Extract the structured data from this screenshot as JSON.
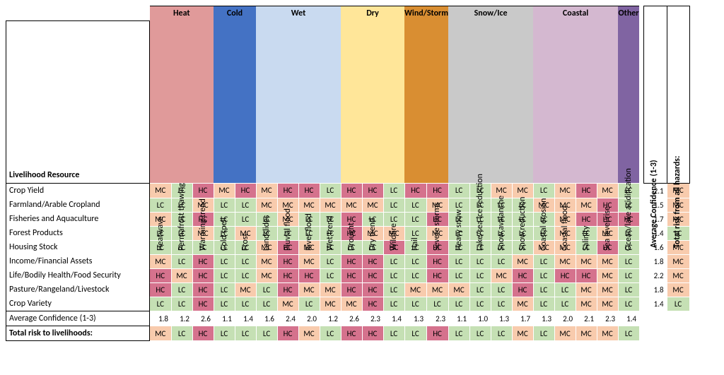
{
  "title_rowheader": "Livelihood Resource",
  "avg_row_label": "Average Confidence (1-3)",
  "total_row_label": "Total risk to livelihoods:",
  "summary_cols": [
    "Average Confidence (1-3)",
    "Total risk from all hazards:"
  ],
  "colors": {
    "LC": "#c5e0b4",
    "MC": "#f8cbad",
    "HC": "#d5728d",
    "group": {
      "Heat": "#e09a9a",
      "Cold": "#4472c4",
      "Wet": "#c9daf0",
      "Dry": "#ffe699",
      "Wind/Storm": "#d98e32",
      "Snow/Ice": "#c9c9c9",
      "Coastal": "#d4b8d0",
      "Other": "#8064a2"
    },
    "text_on_dark": "#000000"
  },
  "groups": [
    {
      "name": "Heat",
      "hazards": [
        "Heatwave",
        "Permafrost thawing",
        "Warming trend"
      ]
    },
    {
      "name": "Cold",
      "hazards": [
        "Cold spell",
        "Frost"
      ]
    },
    {
      "name": "Wet",
      "hazards": [
        "Landslides",
        "Pluvial flood",
        "River flood",
        "Wet trend"
      ]
    },
    {
      "name": "Dry",
      "hazards": [
        "Drought",
        "Dry trend",
        "Wildfire"
      ]
    },
    {
      "name": "Wind/Storm",
      "hazards": [
        "Hail",
        "Severe storms"
      ]
    },
    {
      "name": "Snow/Ice",
      "hazards": [
        "Heavy snow",
        "Lake/sea ice reduction",
        "Snow avalanche",
        "Snow reduction"
      ]
    },
    {
      "name": "Coastal",
      "hazards": [
        "Coastal erosion",
        "Coastal flood",
        "Salinity",
        "Sea level rise"
      ]
    },
    {
      "name": "Other",
      "hazards": [
        "Ocean/lake acidification"
      ]
    }
  ],
  "rows": [
    {
      "label": "Crop Yield",
      "cells": [
        "MC",
        "LC",
        "HC",
        "MC",
        "HC",
        "MC",
        "HC",
        "HC",
        "LC",
        "HC",
        "HC",
        "LC",
        "HC",
        "HC",
        "LC",
        "LC",
        "MC",
        "MC",
        "LC",
        "MC",
        "HC",
        "MC",
        "LC"
      ],
      "avg": 2.1,
      "total": "MC"
    },
    {
      "label": "Farmland/Arable Cropland",
      "cells": [
        "LC",
        "LC",
        "MC",
        "LC",
        "LC",
        "MC",
        "MC",
        "MC",
        "MC",
        "MC",
        "MC",
        "LC",
        "LC",
        "MC",
        "LC",
        "LC",
        "LC",
        "LC",
        "MC",
        "MC",
        "MC",
        "HC",
        "LC"
      ],
      "avg": 1.5,
      "total": "MC"
    },
    {
      "label": "Fisheries and Aquaculture",
      "cells": [
        "MC",
        "LC",
        "HC",
        "LC",
        "LC",
        "LC",
        "MC",
        "LC",
        "LC",
        "HC",
        "LC",
        "LC",
        "LC",
        "HC",
        "LC",
        "LC",
        "LC",
        "LC",
        "LC",
        "MC",
        "HC",
        "HC",
        "HC"
      ],
      "avg": 1.7,
      "total": "MC"
    },
    {
      "label": "Forest Products",
      "cells": [
        "LC",
        "LC",
        "MC",
        "LC",
        "MC",
        "LC",
        "LC",
        "LC",
        "LC",
        "HC",
        "MC",
        "MC",
        "LC",
        "MC",
        "LC",
        "LC",
        "LC",
        "LC",
        "LC",
        "MC",
        "LC",
        "MC",
        "LC"
      ],
      "avg": 1.4,
      "total": "LC"
    },
    {
      "label": "Housing Stock",
      "cells": [
        "LC",
        "LC",
        "LC",
        "LC",
        "LC",
        "MC",
        "HC",
        "MC",
        "LC",
        "LC",
        "LC",
        "HC",
        "LC",
        "HC",
        "LC",
        "LC",
        "LC",
        "LC",
        "MC",
        "MC",
        "LC",
        "HC",
        "LC"
      ],
      "avg": 1.6,
      "total": "MC"
    },
    {
      "label": "Income/Financial Assets",
      "cells": [
        "MC",
        "LC",
        "HC",
        "LC",
        "LC",
        "MC",
        "HC",
        "MC",
        "LC",
        "HC",
        "HC",
        "LC",
        "LC",
        "HC",
        "LC",
        "LC",
        "LC",
        "MC",
        "LC",
        "MC",
        "MC",
        "MC",
        "LC"
      ],
      "avg": 1.8,
      "total": "MC"
    },
    {
      "label": "Life/Bodily Health/Food Security",
      "cells": [
        "HC",
        "MC",
        "HC",
        "LC",
        "LC",
        "MC",
        "HC",
        "HC",
        "LC",
        "HC",
        "HC",
        "LC",
        "LC",
        "HC",
        "LC",
        "LC",
        "MC",
        "HC",
        "LC",
        "HC",
        "HC",
        "MC",
        "LC"
      ],
      "avg": 2.2,
      "total": "MC"
    },
    {
      "label": "Pasture/Rangeland/Livestock",
      "cells": [
        "HC",
        "LC",
        "HC",
        "LC",
        "MC",
        "LC",
        "HC",
        "MC",
        "MC",
        "HC",
        "HC",
        "LC",
        "MC",
        "MC",
        "MC",
        "LC",
        "LC",
        "HC",
        "LC",
        "LC",
        "MC",
        "MC",
        "LC"
      ],
      "avg": 1.8,
      "total": "MC"
    },
    {
      "label": "Crop Variety",
      "cells": [
        "LC",
        "LC",
        "HC",
        "LC",
        "LC",
        "LC",
        "MC",
        "LC",
        "MC",
        "MC",
        "HC",
        "LC",
        "LC",
        "LC",
        "LC",
        "LC",
        "LC",
        "MC",
        "LC",
        "LC",
        "MC",
        "MC",
        "LC"
      ],
      "avg": 1.4,
      "total": "LC"
    }
  ],
  "col_avg": [
    1.8,
    1.2,
    2.6,
    1.1,
    1.4,
    1.6,
    2.4,
    2.0,
    1.2,
    2.6,
    2.3,
    1.4,
    1.3,
    2.3,
    1.1,
    1.0,
    1.3,
    1.7,
    1.3,
    2.0,
    2.1,
    2.3,
    1.4
  ],
  "col_total": [
    "MC",
    "LC",
    "HC",
    "LC",
    "LC",
    "LC",
    "HC",
    "MC",
    "LC",
    "HC",
    "HC",
    "LC",
    "LC",
    "HC",
    "LC",
    "LC",
    "LC",
    "MC",
    "LC",
    "MC",
    "MC",
    "MC",
    "LC"
  ]
}
